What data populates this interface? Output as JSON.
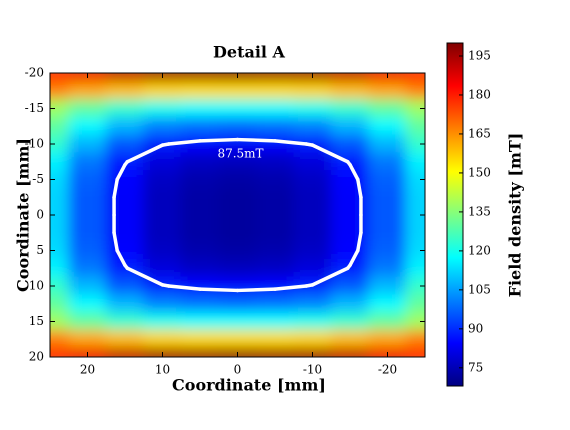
{
  "chart_data": {
    "type": "heatmap",
    "title": "Detail A",
    "x_label": "Coordinate [mm]",
    "y_label": "Coordinate [mm]",
    "colorbar_label": "Field density [mT]",
    "x": [
      25,
      20,
      15,
      10,
      5,
      0,
      -5,
      -10,
      -15,
      -20,
      -25
    ],
    "y": [
      -20,
      -17.5,
      -15,
      -12.5,
      -10,
      -7.5,
      -5,
      -2.5,
      0,
      2.5,
      5,
      7.5,
      10,
      12.5,
      15,
      17.5,
      20
    ],
    "z": [
      [
        178,
        186,
        192,
        196,
        197,
        198,
        197,
        196,
        192,
        186,
        178
      ],
      [
        167,
        162,
        159,
        156,
        155,
        155,
        155,
        156,
        159,
        162,
        167
      ],
      [
        138,
        130,
        124,
        120,
        118,
        118,
        118,
        120,
        124,
        130,
        138
      ],
      [
        130,
        117,
        108,
        101,
        99,
        98,
        99,
        101,
        108,
        117,
        130
      ],
      [
        124,
        108,
        96,
        88,
        85,
        84,
        85,
        88,
        96,
        108,
        124
      ],
      [
        116,
        100,
        88,
        80,
        77,
        76,
        77,
        80,
        88,
        100,
        116
      ],
      [
        113,
        97,
        85,
        77,
        74,
        73,
        74,
        77,
        85,
        97,
        113
      ],
      [
        112,
        96,
        84,
        76,
        73,
        72,
        73,
        76,
        84,
        96,
        112
      ],
      [
        112,
        96,
        84,
        76,
        73,
        72,
        73,
        76,
        84,
        96,
        112
      ],
      [
        112,
        96,
        84,
        76,
        73,
        72,
        73,
        76,
        84,
        96,
        112
      ],
      [
        113,
        97,
        85,
        77,
        74,
        73,
        74,
        77,
        85,
        97,
        113
      ],
      [
        116,
        100,
        88,
        80,
        77,
        76,
        77,
        80,
        88,
        100,
        116
      ],
      [
        124,
        108,
        96,
        88,
        85,
        84,
        85,
        88,
        96,
        108,
        124
      ],
      [
        130,
        117,
        108,
        101,
        99,
        98,
        99,
        101,
        108,
        117,
        130
      ],
      [
        138,
        130,
        124,
        120,
        118,
        118,
        118,
        120,
        124,
        130,
        138
      ],
      [
        167,
        162,
        159,
        156,
        155,
        155,
        155,
        156,
        159,
        162,
        167
      ],
      [
        178,
        186,
        192,
        196,
        197,
        198,
        197,
        196,
        192,
        186,
        178
      ]
    ],
    "xlim": [
      25,
      -25
    ],
    "xticks": [
      20,
      10,
      0,
      -10,
      -20
    ],
    "ylim": [
      -20,
      20
    ],
    "yticks": [
      -20,
      -15,
      -10,
      -5,
      0,
      5,
      10,
      15,
      20
    ],
    "zlim": [
      68,
      200
    ],
    "zticks": [
      75,
      90,
      105,
      120,
      135,
      150,
      165,
      180,
      195
    ],
    "colormap": "jet",
    "contour_levels": [
      87.5
    ],
    "contour_labels": [
      "87.5mT"
    ],
    "contour_color": "#ffffff"
  }
}
